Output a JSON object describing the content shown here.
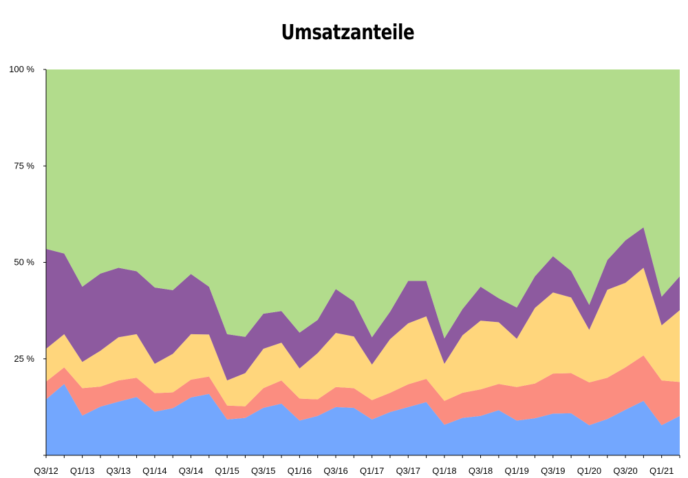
{
  "chart_data": {
    "type": "area",
    "stacked": true,
    "title": "Umsatzanteile",
    "xlabel": "",
    "ylabel": "",
    "ylim": [
      0,
      100
    ],
    "yticks": [
      "100 %",
      "75 %",
      "50 %",
      "25 %"
    ],
    "ytick_values": [
      100,
      75,
      50,
      25
    ],
    "x": [
      "Q3/12",
      "Q4/12",
      "Q1/13",
      "Q2/13",
      "Q3/13",
      "Q4/13",
      "Q1/14",
      "Q2/14",
      "Q3/14",
      "Q4/14",
      "Q1/15",
      "Q2/15",
      "Q3/15",
      "Q4/15",
      "Q1/16",
      "Q2/16",
      "Q3/16",
      "Q4/16",
      "Q1/17",
      "Q2/17",
      "Q3/17",
      "Q4/17",
      "Q1/18",
      "Q2/18",
      "Q3/18",
      "Q4/18",
      "Q1/19",
      "Q2/19",
      "Q3/19",
      "Q4/19",
      "Q1/20",
      "Q2/20",
      "Q3/20",
      "Q4/20",
      "Q1/21",
      "Q2/21"
    ],
    "x_tick_labels": [
      "Q3/12",
      "Q1/13",
      "Q3/13",
      "Q1/14",
      "Q3/14",
      "Q1/15",
      "Q3/15",
      "Q1/16",
      "Q3/16",
      "Q1/17",
      "Q3/17",
      "Q1/18",
      "Q3/18",
      "Q1/19",
      "Q3/19",
      "Q1/20",
      "Q3/20",
      "Q1/21"
    ],
    "series": [
      {
        "color": "#73a7fe",
        "values": [
          14.5,
          18.5,
          10.3,
          12.6,
          13.9,
          15.1,
          11.3,
          12.2,
          15.0,
          15.9,
          9.3,
          9.7,
          12.3,
          13.4,
          9.0,
          10.2,
          12.5,
          12.3,
          9.3,
          11.2,
          12.5,
          13.8,
          7.9,
          9.7,
          10.2,
          11.7,
          9.0,
          9.6,
          10.8,
          10.9,
          7.8,
          9.4,
          11.8,
          14.1,
          7.8,
          10.2
        ]
      },
      {
        "color": "#fb8d80",
        "values": [
          4.6,
          4.3,
          7.1,
          5.2,
          5.5,
          5.0,
          4.8,
          4.1,
          4.6,
          4.5,
          3.6,
          3.0,
          5.1,
          6.0,
          5.7,
          4.3,
          5.2,
          5.1,
          5.0,
          5.0,
          5.9,
          6.0,
          6.2,
          6.5,
          6.9,
          6.8,
          8.7,
          9.0,
          10.4,
          10.4,
          11.1,
          10.7,
          11.0,
          11.8,
          11.6,
          8.8
        ]
      },
      {
        "color": "#ffd67c",
        "values": [
          8.5,
          8.6,
          6.8,
          9.3,
          11.2,
          11.3,
          7.6,
          10.0,
          11.8,
          10.9,
          6.5,
          8.6,
          10.2,
          9.8,
          7.8,
          12.0,
          14.0,
          13.4,
          9.2,
          13.9,
          15.8,
          16.2,
          9.6,
          14.9,
          17.8,
          16.0,
          12.5,
          19.6,
          21.0,
          19.6,
          13.6,
          22.8,
          21.9,
          22.7,
          14.3,
          18.6
        ]
      },
      {
        "color": "#8d5a9f",
        "values": [
          25.9,
          20.9,
          19.5,
          20.0,
          18.0,
          16.3,
          19.8,
          16.5,
          15.6,
          12.4,
          12.0,
          9.4,
          9.1,
          8.2,
          9.3,
          8.6,
          11.4,
          9.1,
          7.1,
          7.1,
          11.0,
          9.2,
          6.6,
          6.8,
          8.8,
          6.2,
          8.1,
          8.2,
          9.4,
          6.9,
          6.5,
          7.7,
          11.0,
          10.5,
          7.4,
          8.8
        ]
      },
      {
        "color": "#b2dc8c",
        "values": [
          46.5,
          47.7,
          56.3,
          52.9,
          51.4,
          52.3,
          56.5,
          57.2,
          53.0,
          56.3,
          68.6,
          69.3,
          63.3,
          62.6,
          68.2,
          64.9,
          56.9,
          60.1,
          69.4,
          62.8,
          54.8,
          54.8,
          69.7,
          62.1,
          56.3,
          59.3,
          61.7,
          53.6,
          48.4,
          52.2,
          61.0,
          49.4,
          44.3,
          40.9,
          58.9,
          53.6
        ]
      }
    ]
  }
}
